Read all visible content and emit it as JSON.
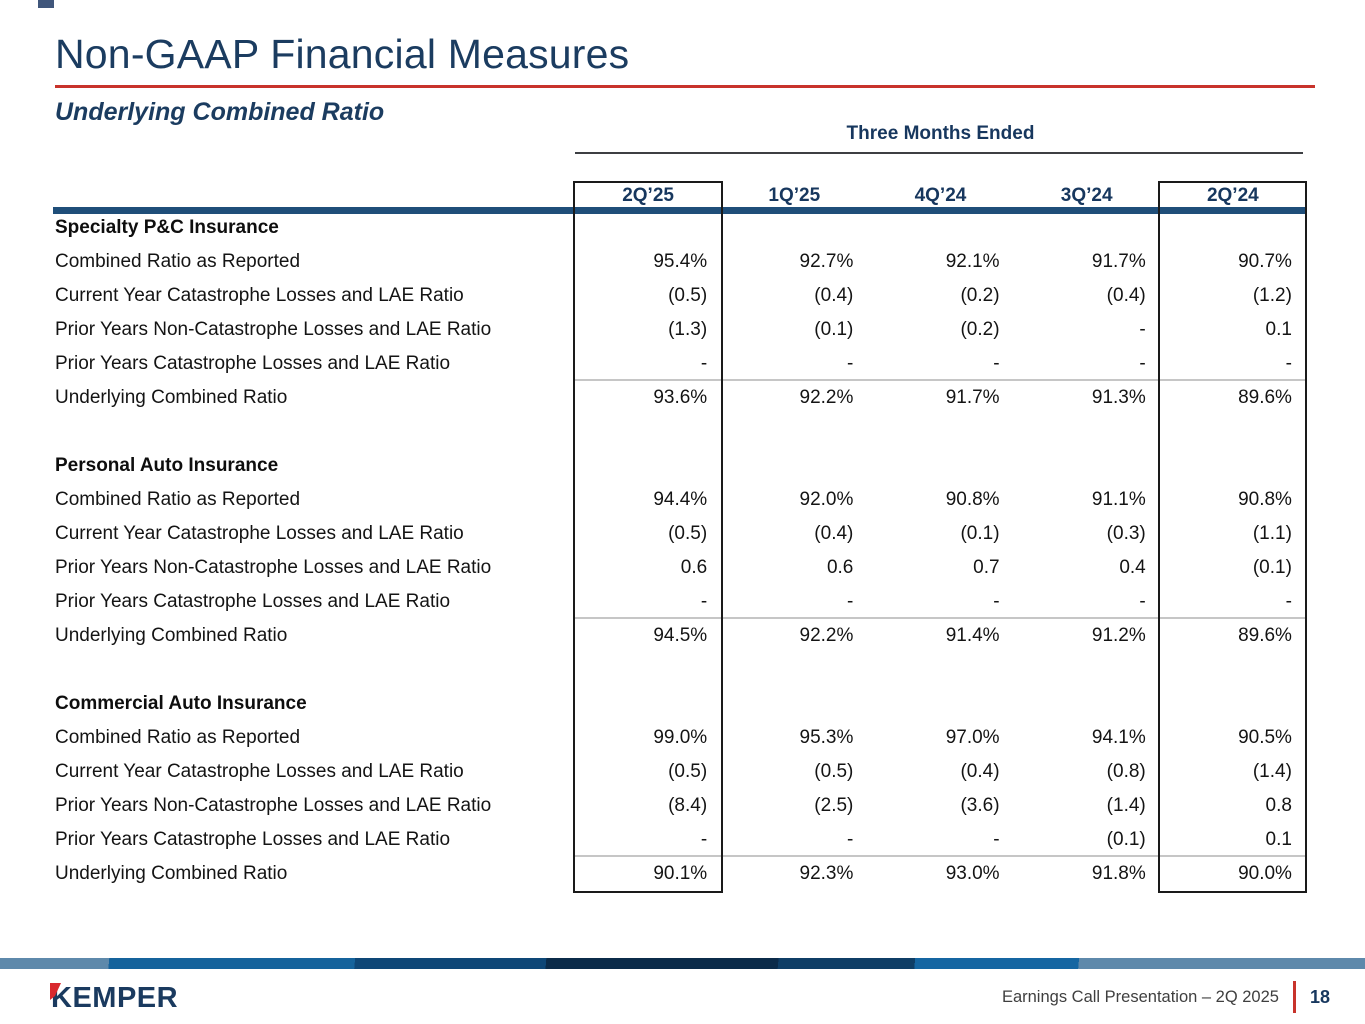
{
  "title": "Non-GAAP Financial Measures",
  "subtitle": "Underlying Combined Ratio",
  "table": {
    "period_header": "Three Months Ended",
    "columns": [
      "2Q’25",
      "1Q’25",
      "4Q’24",
      "3Q’24",
      "2Q’24"
    ],
    "highlighted_columns": [
      "2Q’25",
      "2Q’24"
    ],
    "sections": [
      {
        "name": "Specialty P&C Insurance",
        "rows": [
          {
            "label": "Combined Ratio as Reported",
            "values": [
              "95.4%",
              "92.7%",
              "92.1%",
              "91.7%",
              "90.7%"
            ]
          },
          {
            "label": "Current Year Catastrophe Losses and LAE Ratio",
            "values": [
              "(0.5)",
              "(0.4)",
              "(0.2)",
              "(0.4)",
              "(1.2)"
            ]
          },
          {
            "label": "Prior Years Non-Catastrophe Losses and LAE Ratio",
            "values": [
              "(1.3)",
              "(0.1)",
              "(0.2)",
              "-",
              "0.1"
            ]
          },
          {
            "label": "Prior Years Catastrophe Losses and LAE Ratio",
            "values": [
              "-",
              "-",
              "-",
              "-",
              "-"
            ]
          },
          {
            "label": "Underlying Combined Ratio",
            "values": [
              "93.6%",
              "92.2%",
              "91.7%",
              "91.3%",
              "89.6%"
            ]
          }
        ]
      },
      {
        "name": "Personal Auto Insurance",
        "rows": [
          {
            "label": "Combined Ratio as Reported",
            "values": [
              "94.4%",
              "92.0%",
              "90.8%",
              "91.1%",
              "90.8%"
            ]
          },
          {
            "label": "Current Year Catastrophe Losses and LAE Ratio",
            "values": [
              "(0.5)",
              "(0.4)",
              "(0.1)",
              "(0.3)",
              "(1.1)"
            ]
          },
          {
            "label": "Prior Years Non-Catastrophe Losses and LAE Ratio",
            "values": [
              "0.6",
              "0.6",
              "0.7",
              "0.4",
              "(0.1)"
            ]
          },
          {
            "label": "Prior Years Catastrophe Losses and LAE Ratio",
            "values": [
              "-",
              "-",
              "-",
              "-",
              "-"
            ]
          },
          {
            "label": "Underlying Combined Ratio",
            "values": [
              "94.5%",
              "92.2%",
              "91.4%",
              "91.2%",
              "89.6%"
            ]
          }
        ]
      },
      {
        "name": "Commercial Auto Insurance",
        "rows": [
          {
            "label": "Combined Ratio as Reported",
            "values": [
              "99.0%",
              "95.3%",
              "97.0%",
              "94.1%",
              "90.5%"
            ]
          },
          {
            "label": "Current Year Catastrophe Losses and LAE Ratio",
            "values": [
              "(0.5)",
              "(0.5)",
              "(0.4)",
              "(0.8)",
              "(1.4)"
            ]
          },
          {
            "label": "Prior Years Non-Catastrophe Losses and LAE Ratio",
            "values": [
              "(8.4)",
              "(2.5)",
              "(3.6)",
              "(1.4)",
              "0.8"
            ]
          },
          {
            "label": "Prior Years Catastrophe Losses and LAE Ratio",
            "values": [
              "-",
              "-",
              "-",
              "(0.1)",
              "0.1"
            ]
          },
          {
            "label": "Underlying Combined Ratio",
            "values": [
              "90.1%",
              "92.3%",
              "93.0%",
              "91.8%",
              "90.0%"
            ]
          }
        ]
      }
    ]
  },
  "footer": {
    "brand": "KEMPER",
    "caption": "Earnings Call Presentation – 2Q 2025",
    "page_number": "18"
  },
  "colors": {
    "title_navy": "#1b3c60",
    "rule_red": "#c8332b",
    "header_bar_navy": "#1f4e79",
    "logo_navy": "#1a3a5f",
    "logo_red": "#d9282e",
    "total_rule_gray": "#c6c6c6"
  }
}
